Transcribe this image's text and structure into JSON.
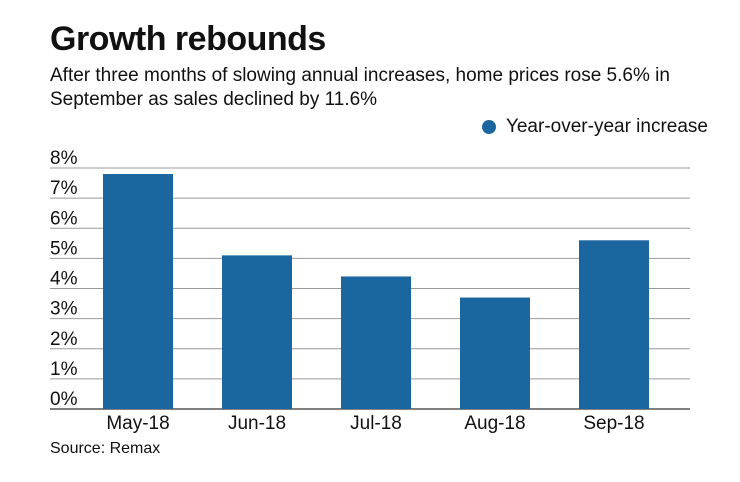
{
  "chart_data": {
    "type": "bar",
    "title": "Growth rebounds",
    "subtitle": "After three months of slowing annual increases, home prices rose 5.6% in September as sales declined by 11.6%",
    "categories": [
      "May-18",
      "Jun-18",
      "Jul-18",
      "Aug-18",
      "Sep-18"
    ],
    "series": [
      {
        "name": "Year-over-year increase",
        "values": [
          7.8,
          5.1,
          4.4,
          3.7,
          5.6
        ],
        "color": "#1c669f"
      }
    ],
    "ylim": [
      0,
      8
    ],
    "yticks": [
      "0%",
      "1%",
      "2%",
      "3%",
      "4%",
      "5%",
      "6%",
      "7%",
      "8%"
    ],
    "grid": true,
    "legend_position": "top-right",
    "source": "Source: Remax"
  }
}
